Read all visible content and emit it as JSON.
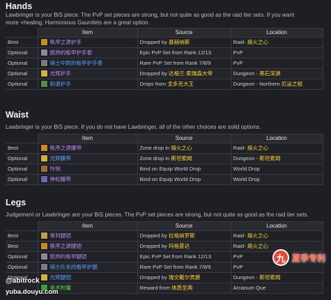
{
  "sections": {
    "hands": {
      "title": "Hands",
      "desc1": "Lawbringer is your BiS piece. The PvP set pieces are strong, but not quite as good as the raid tier sets. If you want",
      "desc2": "more +healing, Harmonious Gauntlets are a great option.",
      "headers": {
        "item": "Item",
        "source": "Source",
        "location": "Location"
      },
      "rows": [
        {
          "slot": "Best",
          "item": "秩序之源护手",
          "item_class": "epic",
          "icon_color": "#c98a2a",
          "source": "Dropped by ",
          "source_zh": "基赫纳斯",
          "location": "Raid- ",
          "location_zh": "熔火之心"
        },
        {
          "slot": "Optional",
          "item": "统帅的板甲护手套",
          "item_class": "epic",
          "icon_color": "#8a8a9a",
          "source": "Epic PvP Set from Rank 12/13",
          "source_zh": "",
          "location": "PvP",
          "location_zh": ""
        },
        {
          "slot": "Optional",
          "item": "骑士中尉的板甲护手套",
          "item_class": "rare",
          "icon_color": "#7a7a86",
          "source": "Rare PvP Set from Rank 7/8/9",
          "source_zh": "",
          "location": "PvP",
          "location_zh": ""
        },
        {
          "slot": "Optional",
          "item": "光辉护手",
          "item_class": "epic",
          "icon_color": "#d0b040",
          "source": "Dropped by ",
          "source_zh": "达格兰·索瑞森大帝",
          "location": "Dungeon - ",
          "location_zh": "黑石深渊"
        },
        {
          "slot": "Optional",
          "item": "和谐护手",
          "item_class": "rare",
          "icon_color": "#5a8a4a",
          "source": "Drops from ",
          "source_zh": "戈多克大王",
          "location": "Dungeon - Northern ",
          "location_zh": "厄运之槌"
        }
      ]
    },
    "waist": {
      "title": "Waist",
      "desc1": "Lawbringer is your BiS piece. If you do not have Lawbringer, all of the other choices are solid options.",
      "headers": {
        "item": "Item",
        "source": "Source",
        "location": "Location"
      },
      "rows": [
        {
          "slot": "Best",
          "item": "秩序之源腰带",
          "item_class": "epic",
          "icon_color": "#c98a2a",
          "source": "Zone drop in ",
          "source_zh": "熔火之心",
          "location": "Raid- ",
          "location_zh": "熔火之心"
        },
        {
          "slot": "Optional",
          "item": "光辉腰带",
          "item_class": "rare",
          "icon_color": "#d0b040",
          "source": "Zone drop in ",
          "source_zh": "斯坦索姆",
          "location": "Dungeon - ",
          "location_zh": "斯坦索姆"
        },
        {
          "slot": "Optional",
          "item": "怜悯",
          "item_class": "epic",
          "icon_color": "#9a6a3a",
          "source": "Bind on Equip World Drop",
          "source_zh": "",
          "location": "World Drop",
          "location_zh": ""
        },
        {
          "slot": "Optional",
          "item": "神权腰带",
          "item_class": "epic",
          "icon_color": "#6a6ab0",
          "source": "Bind on Equip World Drop",
          "source_zh": "",
          "location": "World Drop",
          "location_zh": ""
        }
      ]
    },
    "legs": {
      "title": "Legs",
      "desc1": "Judgement or Lawbringer are your BiS pieces. The PvP set pieces are strong, but not quite as good as the raid tier sets.",
      "headers": {
        "item": "Item",
        "source": "Source",
        "location": "Location"
      },
      "rows": [
        {
          "slot": "Best",
          "item": "审判腿铠",
          "item_class": "epic",
          "icon_color": "#c0a040",
          "source": "Dropped by ",
          "source_zh": "拉格纳罗斯",
          "location": "Raid- ",
          "location_zh": "熔火之心"
        },
        {
          "slot": "Best",
          "item": "秩序之源腿铠",
          "item_class": "epic",
          "icon_color": "#c98a2a",
          "source": "Dropped by ",
          "source_zh": "玛格曼达",
          "location": "Raid- ",
          "location_zh": "熔火之心"
        },
        {
          "slot": "Optional",
          "item": "统帅的板甲腿铠",
          "item_class": "epic",
          "icon_color": "#8a8a9a",
          "source": "Epic PvP Set from Rank 12/13",
          "source_zh": "",
          "location": "PvP",
          "location_zh": ""
        },
        {
          "slot": "Optional",
          "item": "骑士队长的板甲护腿",
          "item_class": "rare",
          "icon_color": "#7a7a86",
          "source": "Rare PvP Set from Rank 7/8/9",
          "source_zh": "",
          "location": "PvP",
          "location_zh": ""
        },
        {
          "slot": "Optional",
          "item": "光辉腿铠",
          "item_class": "rare",
          "icon_color": "#d0b040",
          "source": "Dropped by ",
          "source_zh": "瑞文戴尔男爵",
          "location": "Dungeon - ",
          "location_zh": "斯坦索姆"
        },
        {
          "slot": "",
          "item": "奥术附魔",
          "item_class": "green",
          "icon_color": "#40a040",
          "source": "Reward from ",
          "source_zh": "体质圣典",
          "location": "Arcanum Que",
          "location_zh": ""
        }
      ]
    }
  },
  "watermark": {
    "author": "@abitrock",
    "url": "yuba.douyu.com",
    "logo_char": "九",
    "logo_text": "夏季专利"
  }
}
